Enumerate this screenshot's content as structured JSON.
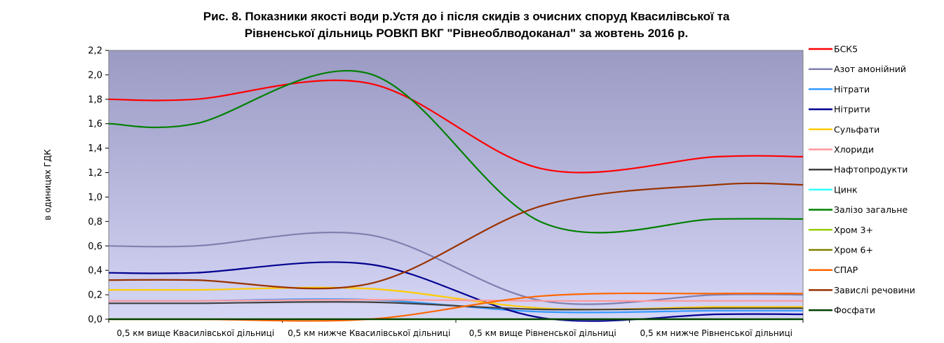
{
  "chart_data": {
    "type": "line",
    "title_line1": "Рис. 8. Показники якості води р.Устя до і після скидів з очисних споруд Квасилівської та",
    "title_line2": "Рівненської дільниць РОВКП ВКГ \"Рівнеоблводоканал\" за жовтень 2016 р.",
    "ylabel": "в одиницях ГДК",
    "xlabel": "",
    "ylim": [
      0,
      2.2
    ],
    "yticks": [
      "0,0",
      "0,2",
      "0,4",
      "0,6",
      "0,8",
      "1,0",
      "1,2",
      "1,4",
      "1,6",
      "1,8",
      "2,0",
      "2,2"
    ],
    "categories": [
      "0,5 км вище Квасилівської дільниці",
      "0,5 км нижче Квасилівської дільниці",
      "0,5 км вище Рівненської дільниці",
      "0,5 км нижче Рівненської дільниці"
    ],
    "legend_position": "right",
    "series": [
      {
        "name": "БСК5",
        "color": "#ff0000",
        "values": [
          1.8,
          1.93,
          1.23,
          1.33
        ]
      },
      {
        "name": "Азот амонійний",
        "color": "#8080b0",
        "values": [
          0.6,
          0.69,
          0.15,
          0.2
        ]
      },
      {
        "name": "Нітрати",
        "color": "#3399ff",
        "values": [
          0.15,
          0.16,
          0.06,
          0.07
        ]
      },
      {
        "name": "Нітрити",
        "color": "#000090",
        "values": [
          0.38,
          0.45,
          0.01,
          0.04
        ]
      },
      {
        "name": "Сульфати",
        "color": "#ffcc00",
        "values": [
          0.24,
          0.25,
          0.09,
          0.1
        ]
      },
      {
        "name": "Хлориди",
        "color": "#ff9999",
        "values": [
          0.15,
          0.16,
          0.15,
          0.15
        ]
      },
      {
        "name": "Нафтопродукти",
        "color": "#404040",
        "values": [
          0.13,
          0.14,
          0.08,
          0.09
        ]
      },
      {
        "name": "Цинк",
        "color": "#33ffff",
        "values": [
          0.0,
          0.0,
          0.0,
          0.0
        ]
      },
      {
        "name": "Залізо загальне",
        "color": "#008000",
        "values": [
          1.6,
          2.01,
          0.79,
          0.82
        ]
      },
      {
        "name": "Хром 3+",
        "color": "#99cc00",
        "values": [
          0.0,
          0.0,
          0.0,
          0.0
        ]
      },
      {
        "name": "Хром 6+",
        "color": "#808000",
        "values": [
          0.0,
          0.0,
          0.0,
          0.0
        ]
      },
      {
        "name": "СПАР",
        "color": "#ff6600",
        "values": [
          0.0,
          0.0,
          0.19,
          0.21
        ]
      },
      {
        "name": "Завислі речовини",
        "color": "#993300",
        "values": [
          0.32,
          0.29,
          0.93,
          1.1
        ]
      },
      {
        "name": "Фосфати",
        "color": "#004000",
        "values": [
          0.0,
          0.0,
          0.0,
          0.0
        ]
      }
    ]
  }
}
